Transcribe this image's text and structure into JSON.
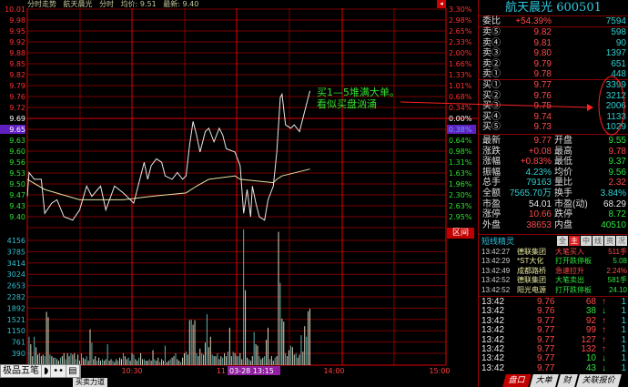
{
  "header": {
    "mode": "分时走势",
    "stock_name": "航天晨光",
    "view": "分时",
    "avg_label": "均价: 9.51",
    "latest_label": "最新: 9.40"
  },
  "colors": {
    "grid": "#7a0000",
    "grid_bright": "#e00000",
    "price_line": "#e8e8e8",
    "avg_line": "#e8e0a0",
    "vol_up": "#d8d8c0",
    "vol_down": "#5fb0b0",
    "highlight": "#6020c0"
  },
  "axes": {
    "price_labels": [
      "10.01",
      "9.98",
      "9.95",
      "9.92",
      "9.88",
      "9.85",
      "9.82",
      "9.79",
      "9.76",
      "9.72",
      "9.69",
      "9.65",
      "9.63",
      "9.60",
      "9.56",
      "9.53",
      "9.50",
      "9.47",
      "9.43",
      "9.40"
    ],
    "percent_labels": [
      "3.30%",
      "2.98%",
      "2.65%",
      "2.33%",
      "2.00%",
      "1.66%",
      "1.33%",
      "1.01%",
      "0.68%",
      "0.34%",
      "0.00%",
      "0.38%",
      "0.64%",
      "0.98%",
      "1.31%",
      "1.63%",
      "1.96%",
      "2.30%",
      "2.63%",
      "2.95%"
    ],
    "prev_close": "9.69",
    "cursor_price": "9.65",
    "cursor_percent": "0.38%",
    "volume_labels": [
      "4156",
      "3785",
      "3414",
      "3024",
      "2653",
      "2282",
      "1892",
      "1521",
      "1150",
      "761",
      "390"
    ],
    "time_labels": [
      "10:30",
      "11",
      "14:00",
      "15:00"
    ],
    "cursor_time": "03-28 13:15",
    "range_button": "区间"
  },
  "chart_data": {
    "type": "line",
    "price_range": [
      9.4,
      10.01
    ],
    "price": [
      [
        "09:30",
        9.46
      ],
      [
        "09:31",
        9.53
      ],
      [
        "09:34",
        9.51
      ],
      [
        "09:38",
        9.51
      ],
      [
        "09:40",
        9.41
      ],
      [
        "09:44",
        9.44
      ],
      [
        "09:47",
        9.45
      ],
      [
        "09:51",
        9.4
      ],
      [
        "09:56",
        9.39
      ],
      [
        "10:00",
        9.42
      ],
      [
        "10:04",
        9.49
      ],
      [
        "10:07",
        9.46
      ],
      [
        "10:12",
        9.49
      ],
      [
        "10:15",
        9.42
      ],
      [
        "10:20",
        9.49
      ],
      [
        "10:25",
        9.47
      ],
      [
        "10:31",
        9.44
      ],
      [
        "10:33",
        9.48
      ],
      [
        "10:37",
        9.56
      ],
      [
        "10:39",
        9.51
      ],
      [
        "10:41",
        9.55
      ],
      [
        "10:44",
        9.57
      ],
      [
        "10:47",
        9.56
      ],
      [
        "10:49",
        9.52
      ],
      [
        "10:53",
        9.51
      ],
      [
        "10:56",
        9.53
      ],
      [
        "10:59",
        9.51
      ],
      [
        "11:01",
        9.52
      ],
      [
        "11:03",
        9.61
      ],
      [
        "11:05",
        9.68
      ],
      [
        "11:07",
        9.64
      ],
      [
        "11:09",
        9.59
      ],
      [
        "11:12",
        9.65
      ],
      [
        "11:14",
        9.66
      ],
      [
        "11:17",
        9.62
      ],
      [
        "11:20",
        9.66
      ],
      [
        "11:22",
        9.64
      ],
      [
        "11:24",
        9.6
      ],
      [
        "11:29",
        9.59
      ],
      [
        "13:02",
        9.55
      ],
      [
        "13:04",
        9.41
      ],
      [
        "13:06",
        9.48
      ],
      [
        "13:08",
        9.4
      ],
      [
        "13:09",
        9.49
      ],
      [
        "13:11",
        9.44
      ],
      [
        "13:13",
        9.4
      ],
      [
        "13:16",
        9.39
      ],
      [
        "13:18",
        9.45
      ],
      [
        "13:21",
        9.49
      ],
      [
        "13:23",
        9.59
      ],
      [
        "13:25",
        9.75
      ],
      [
        "13:26",
        9.76
      ],
      [
        "13:28",
        9.67
      ],
      [
        "13:31",
        9.66
      ],
      [
        "13:33",
        9.67
      ],
      [
        "13:36",
        9.65
      ],
      [
        "13:37",
        9.67
      ],
      [
        "13:39",
        9.71
      ],
      [
        "13:42",
        9.77
      ]
    ],
    "avg_price": [
      [
        "09:30",
        9.51
      ],
      [
        "09:40",
        9.48
      ],
      [
        "10:00",
        9.45
      ],
      [
        "10:25",
        9.45
      ],
      [
        "10:41",
        9.46
      ],
      [
        "11:01",
        9.47
      ],
      [
        "11:07",
        9.49
      ],
      [
        "11:14",
        9.51
      ],
      [
        "11:29",
        9.52
      ],
      [
        "13:02",
        9.51
      ],
      [
        "13:21",
        9.5
      ],
      [
        "13:23",
        9.51
      ],
      [
        "13:26",
        9.52
      ],
      [
        "13:42",
        9.54
      ]
    ],
    "volume_morning": [
      950,
      700,
      300,
      950,
      600,
      350,
      400,
      300,
      350,
      300,
      1780,
      1600,
      350,
      300,
      250,
      250,
      200,
      150,
      250,
      300,
      400,
      200,
      400,
      300,
      400,
      350,
      400,
      200,
      350,
      150,
      400,
      250,
      200,
      300,
      150,
      1200,
      750,
      200,
      300,
      150,
      250,
      150,
      200,
      150,
      200,
      700,
      150,
      200,
      150,
      100,
      200,
      150,
      250,
      200,
      400,
      300,
      200,
      250,
      150,
      400,
      350,
      200,
      150,
      250,
      400,
      200,
      200,
      150,
      150,
      200,
      150,
      500,
      200,
      150,
      250,
      100,
      200,
      150,
      650,
      100,
      150,
      200,
      250,
      300,
      400,
      200,
      150,
      100,
      250,
      400,
      450,
      350,
      1500,
      1520,
      1350,
      1500,
      400,
      300,
      550,
      400,
      350,
      750,
      1700,
      600,
      950,
      350,
      300,
      300,
      400,
      200,
      300,
      250,
      400,
      300,
      450,
      1250,
      300,
      450,
      400,
      300
    ],
    "volume_afternoon": [
      300,
      400,
      200,
      4530,
      2500,
      250,
      200,
      150,
      300,
      1100,
      700,
      650,
      300,
      200,
      250,
      300,
      850,
      1250,
      200,
      300,
      150,
      250,
      300,
      4450,
      2750,
      1550,
      1450,
      400,
      300,
      500,
      650,
      600,
      350,
      400,
      250,
      350,
      1000,
      450,
      1300,
      950,
      1800,
      1880
    ],
    "volume_range": [
      0,
      4156
    ]
  },
  "annotation": {
    "line1": "买1—5堆满大单。",
    "line2": "看似买盘汹涌"
  },
  "panel": {
    "title": "航天晨光 600501",
    "weibi": {
      "label": "委比",
      "pct": "+54.39%",
      "vol": "7594"
    },
    "sells": [
      {
        "label": "卖⑤",
        "price": "9.82",
        "vol": "598"
      },
      {
        "label": "卖④",
        "price": "9.81",
        "vol": "90"
      },
      {
        "label": "卖③",
        "price": "9.80",
        "vol": "1397"
      },
      {
        "label": "卖②",
        "price": "9.79",
        "vol": "651"
      },
      {
        "label": "卖①",
        "price": "9.78",
        "vol": "448"
      }
    ],
    "buys": [
      {
        "label": "买①",
        "price": "9.77",
        "vol": "3399"
      },
      {
        "label": "买②",
        "price": "9.76",
        "vol": "3212"
      },
      {
        "label": "买③",
        "price": "9.75",
        "vol": "2006"
      },
      {
        "label": "买④",
        "price": "9.74",
        "vol": "1133"
      },
      {
        "label": "买⑤",
        "price": "9.73",
        "vol": "1029"
      }
    ],
    "stats": [
      {
        "l1": "最新",
        "v1": "9.77",
        "c1": "red",
        "l2": "开盘",
        "v2": "9.55",
        "c2": "grn"
      },
      {
        "l1": "涨跌",
        "v1": "+0.08",
        "c1": "red",
        "l2": "最高",
        "v2": "9.78",
        "c2": "red"
      },
      {
        "l1": "涨幅",
        "v1": "+0.83%",
        "c1": "red",
        "l2": "最低",
        "v2": "9.37",
        "c2": "grn"
      },
      {
        "l1": "振幅",
        "v1": "4.23%",
        "c1": "teal",
        "l2": "均价",
        "v2": "9.56",
        "c2": "grn"
      },
      {
        "l1": "总手",
        "v1": "79163",
        "c1": "teal",
        "l2": "量比",
        "v2": "2.32",
        "c2": "red"
      },
      {
        "l1": "全额",
        "v1": "7565.70万",
        "c1": "teal",
        "l2": "换手",
        "v2": "3.84%",
        "c2": "teal"
      },
      {
        "l1": "市盈",
        "v1": "54.01",
        "c1": "wht",
        "l2": "市盈(动)",
        "v2": "68.29",
        "c2": "wht"
      },
      {
        "l1": "涨停",
        "v1": "10.66",
        "c1": "red",
        "l2": "跌停",
        "v2": "8.72",
        "c2": "grn"
      },
      {
        "l1": "外盘",
        "v1": "38653",
        "c1": "red",
        "l2": "内盘",
        "v2": "40510",
        "c2": "grn"
      }
    ],
    "short_line": {
      "title": "短线精灵",
      "tabs": [
        "全",
        "主",
        "中",
        "线",
        "资",
        "况"
      ],
      "events": [
        {
          "time": "13:42:27",
          "name": "德联集团",
          "event": "大笔买入",
          "value": "511手",
          "c": "red"
        },
        {
          "time": "13:42:29",
          "name": "*ST大化",
          "event": "打开跌停板",
          "value": "5.08",
          "c": "grn"
        },
        {
          "time": "13:42:49",
          "name": "成都路桥",
          "event": "急速拉升",
          "value": "2.24%",
          "c": "red"
        },
        {
          "time": "13:42:52",
          "name": "德联集团",
          "event": "大笔卖出",
          "value": "581手",
          "c": "grn"
        },
        {
          "time": "13:42:52",
          "name": "阳光电源",
          "event": "打开跌停板",
          "value": "24.10",
          "c": "grn"
        }
      ]
    },
    "ticks": [
      {
        "time": "13:42",
        "price": "9.76",
        "vol": "68",
        "dir": "↑",
        "n": "1"
      },
      {
        "time": "13:42",
        "price": "9.76",
        "vol": "38",
        "dir": "↓",
        "n": "1"
      },
      {
        "time": "13:42",
        "price": "9.77",
        "vol": "92",
        "dir": "↑",
        "n": "1"
      },
      {
        "time": "13:42",
        "price": "9.77",
        "vol": "99",
        "dir": "↑",
        "n": "1"
      },
      {
        "time": "13:42",
        "price": "9.77",
        "vol": "127",
        "dir": "↑",
        "n": "1"
      },
      {
        "time": "13:42",
        "price": "9.77",
        "vol": "132",
        "dir": "↑",
        "n": "1"
      },
      {
        "time": "13:42",
        "price": "9.77",
        "vol": "10",
        "dir": "↓",
        "n": "1"
      },
      {
        "time": "13:42",
        "price": "9.77",
        "vol": "43",
        "dir": "↓",
        "n": "1"
      }
    ],
    "bottom_tabs": [
      "盘口",
      "大单",
      "财",
      "关联报价"
    ]
  },
  "ime": {
    "name": "极品五笔"
  },
  "left_tab": "买卖力道"
}
